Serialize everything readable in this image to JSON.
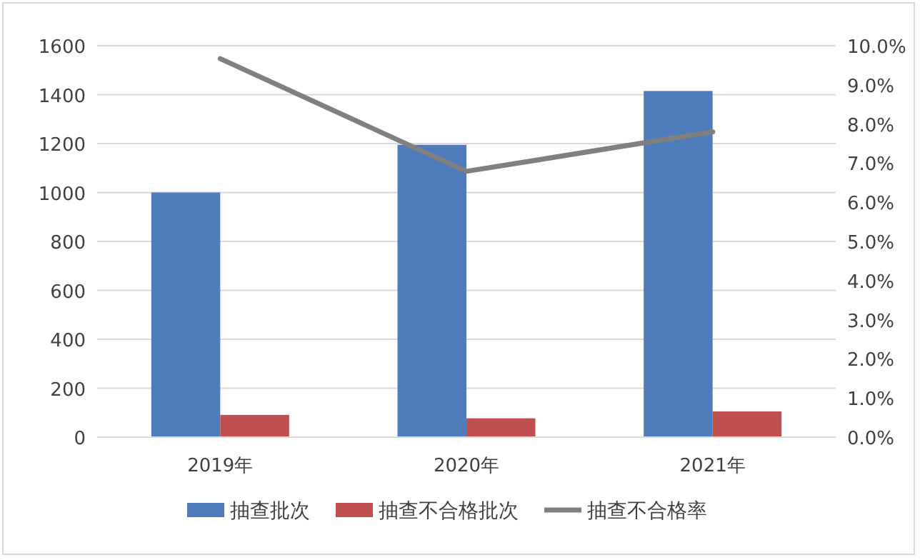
{
  "chart_data": {
    "type": "bar",
    "categories": [
      "2019年",
      "2020年",
      "2021年"
    ],
    "series": [
      {
        "name": "抽查批次",
        "color": "#4f7dbc",
        "values": [
          1000,
          1195,
          1415
        ]
      },
      {
        "name": "抽查不合格批次",
        "color": "#c0504d",
        "values": [
          91,
          77,
          105
        ]
      },
      {
        "name": "抽查不合格率",
        "type": "line",
        "axis": "y2",
        "color": "#808080",
        "values": [
          9.67,
          6.79,
          7.8
        ]
      }
    ],
    "ylim": [
      0,
      1600
    ],
    "yticks": [
      0,
      200,
      400,
      600,
      800,
      1000,
      1200,
      1400,
      1600
    ],
    "y2lim": [
      0,
      10
    ],
    "y2ticks": [
      {
        "value": 0,
        "label": "0.0%"
      },
      {
        "value": 1,
        "label": "1.0%"
      },
      {
        "value": 2,
        "label": "2.0%"
      },
      {
        "value": 3,
        "label": "3.0%"
      },
      {
        "value": 4,
        "label": "4.0%"
      },
      {
        "value": 5,
        "label": "5.0%"
      },
      {
        "value": 6,
        "label": "6.0%"
      },
      {
        "value": 7,
        "label": "7.0%"
      },
      {
        "value": 8,
        "label": "8.0%"
      },
      {
        "value": 9,
        "label": "9.0%"
      },
      {
        "value": 10,
        "label": "10.0%"
      }
    ],
    "grid": "y",
    "legend": "bottom"
  }
}
